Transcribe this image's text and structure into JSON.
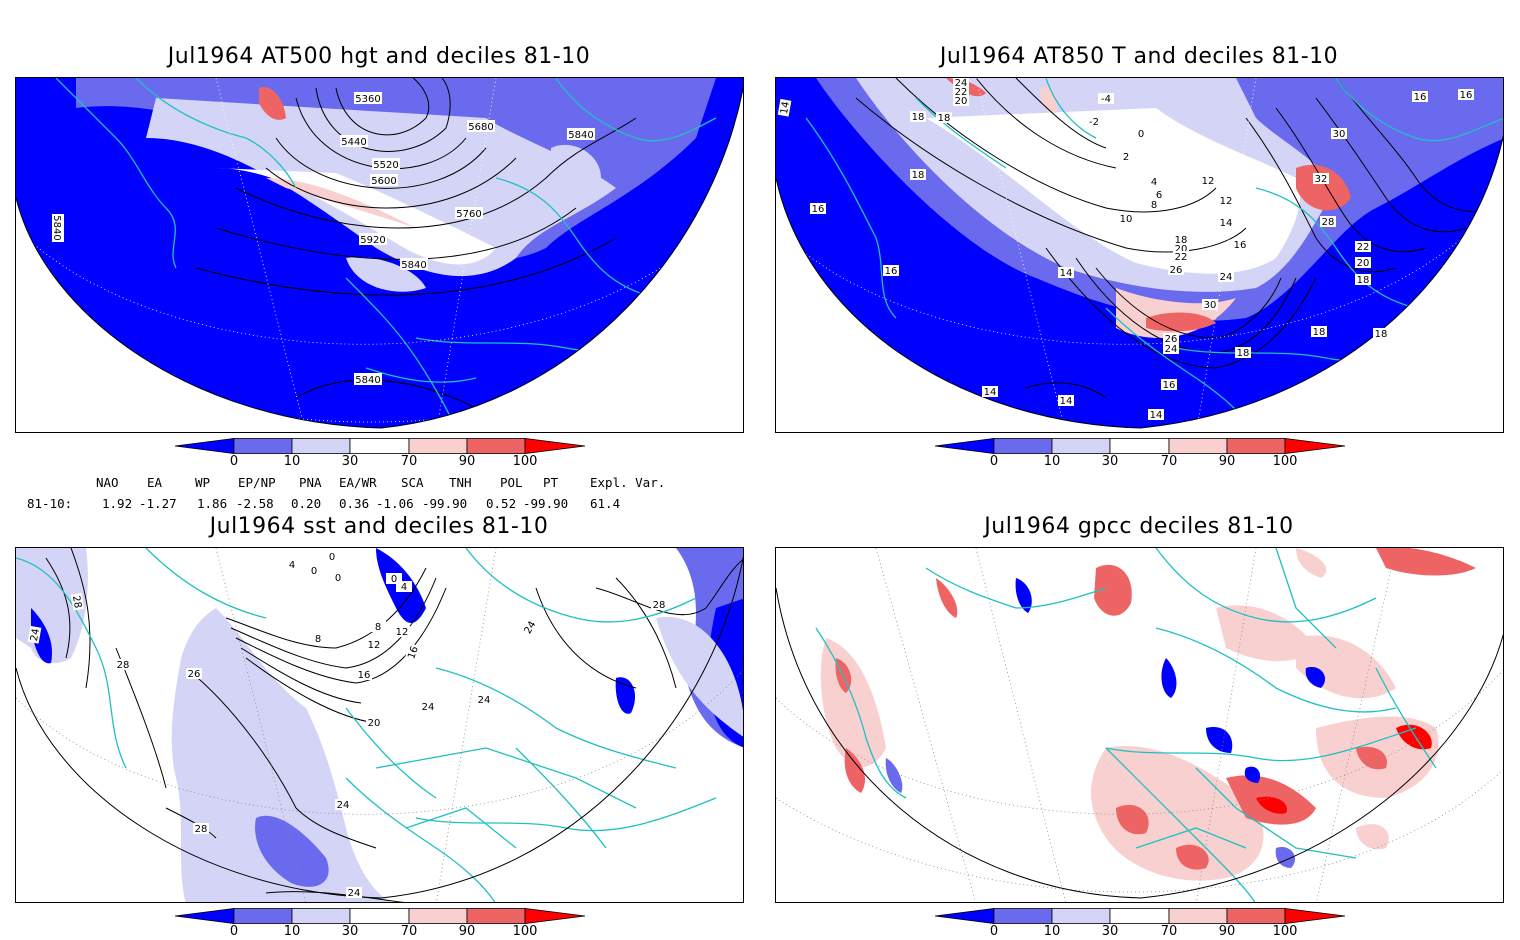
{
  "panels": [
    {
      "id": "p1",
      "title": "Jul1964 AT500 hgt and deciles 81-10"
    },
    {
      "id": "p2",
      "title": "Jul1964 AT850 T and deciles 81-10"
    },
    {
      "id": "p3",
      "title": "Jul1964 sst and deciles 81-10"
    },
    {
      "id": "p4",
      "title": "Jul1964 gpcc deciles 81-10"
    }
  ],
  "colorbar": {
    "labels": [
      "0",
      "10",
      "30",
      "70",
      "90",
      "100"
    ],
    "colors": [
      "#0000ff",
      "#6a6aee",
      "#d4d4f6",
      "#ffffff",
      "#f8d0d0",
      "#ee6464",
      "#ff0000"
    ]
  },
  "indices": {
    "headers": [
      "NAO",
      "EA",
      "WP",
      "EP/NP",
      "PNA",
      "EA/WR",
      "SCA",
      "TNH",
      "POL",
      "PT",
      "Expl. Var."
    ],
    "row_label": "81-10:",
    "values": [
      "1.92",
      "-1.27",
      "1.86",
      "-2.58",
      "0.20",
      "0.36",
      "-1.06",
      "-99.90",
      "0.52",
      "-99.90",
      "61.4"
    ]
  },
  "contour_labels": {
    "p1": [
      "5360",
      "5440",
      "5520",
      "5600",
      "5680",
      "5760",
      "5840",
      "5840",
      "5920",
      "5840",
      "5840"
    ],
    "p2": [
      "24",
      "22",
      "20",
      "18",
      "-4",
      "-2",
      "0",
      "2",
      "4",
      "6",
      "8",
      "10",
      "12",
      "12",
      "14",
      "14",
      "16",
      "16",
      "16",
      "18",
      "18",
      "18",
      "20",
      "22",
      "24",
      "26",
      "28",
      "30",
      "32",
      "30",
      "26",
      "24",
      "22",
      "20",
      "18",
      "16",
      "14",
      "14",
      "14",
      "18",
      "18",
      "16",
      "14",
      "16",
      "18"
    ],
    "p3": [
      "0",
      "4",
      "0",
      "0",
      "0",
      "4",
      "8",
      "8",
      "12",
      "12",
      "16",
      "16",
      "20",
      "24",
      "24",
      "24",
      "28",
      "28",
      "26",
      "28",
      "24",
      "24",
      "28",
      "24"
    ]
  }
}
